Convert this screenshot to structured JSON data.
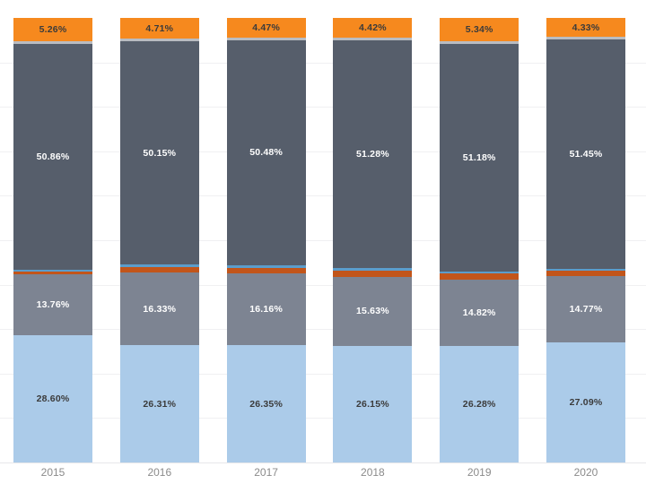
{
  "chart_data": {
    "type": "bar",
    "stacked": true,
    "orientation": "vertical",
    "title": "",
    "xlabel": "",
    "ylabel": "",
    "value_format": "percent",
    "ylim": [
      0,
      100
    ],
    "legend": "none",
    "gridlines": {
      "visible": true,
      "interval_pct": 10,
      "color": "#f0f0f2"
    },
    "axis": {
      "tick_label_color": "#8b8b8b"
    },
    "categories": [
      "2015",
      "2016",
      "2017",
      "2018",
      "2019",
      "2020"
    ],
    "series": [
      {
        "name": "orange-top-segment",
        "color": "#F6891E",
        "label_color": "#3b3b3b",
        "labeled": true,
        "values": [
          5.26,
          4.71,
          4.47,
          4.42,
          5.34,
          4.33
        ],
        "labels": [
          "5.26%",
          "4.71%",
          "4.47%",
          "4.42%",
          "5.34%",
          "4.33%"
        ]
      },
      {
        "name": "silver-thin-segment",
        "color": "#B9BCC1",
        "labeled": false,
        "values": [
          0.5,
          0.6,
          0.6,
          0.6,
          0.5,
          0.6
        ],
        "note": "unlabeled thin band, values estimated from pixels"
      },
      {
        "name": "dark-slate-segment",
        "color": "#565E6B",
        "label_color": "#ffffff",
        "labeled": true,
        "values": [
          50.86,
          50.15,
          50.48,
          51.28,
          51.18,
          51.45
        ],
        "labels": [
          "50.86%",
          "50.15%",
          "50.48%",
          "51.28%",
          "51.18%",
          "51.45%"
        ]
      },
      {
        "name": "steel-blue-thin-segment",
        "color": "#5B9DCB",
        "labeled": false,
        "values": [
          0.5,
          0.6,
          0.64,
          0.62,
          0.5,
          0.5
        ],
        "note": "unlabeled thin band, values estimated from pixels"
      },
      {
        "name": "rust-thin-segment",
        "color": "#C2551A",
        "labeled": false,
        "values": [
          0.52,
          1.3,
          1.3,
          1.3,
          1.38,
          1.26
        ],
        "note": "unlabeled thin band, values estimated from pixels"
      },
      {
        "name": "medium-gray-segment",
        "color": "#7D8492",
        "label_color": "#ffffff",
        "labeled": true,
        "values": [
          13.76,
          16.33,
          16.16,
          15.63,
          14.82,
          14.77
        ],
        "labels": [
          "13.76%",
          "16.33%",
          "16.16%",
          "15.63%",
          "14.82%",
          "14.77%"
        ]
      },
      {
        "name": "light-blue-segment",
        "color": "#ABCBE9",
        "label_color": "#3b3b3b",
        "labeled": true,
        "values": [
          28.6,
          26.31,
          26.35,
          26.15,
          26.28,
          27.09
        ],
        "labels": [
          "28.60%",
          "26.31%",
          "26.35%",
          "26.15%",
          "26.28%",
          "27.09%"
        ]
      }
    ]
  }
}
